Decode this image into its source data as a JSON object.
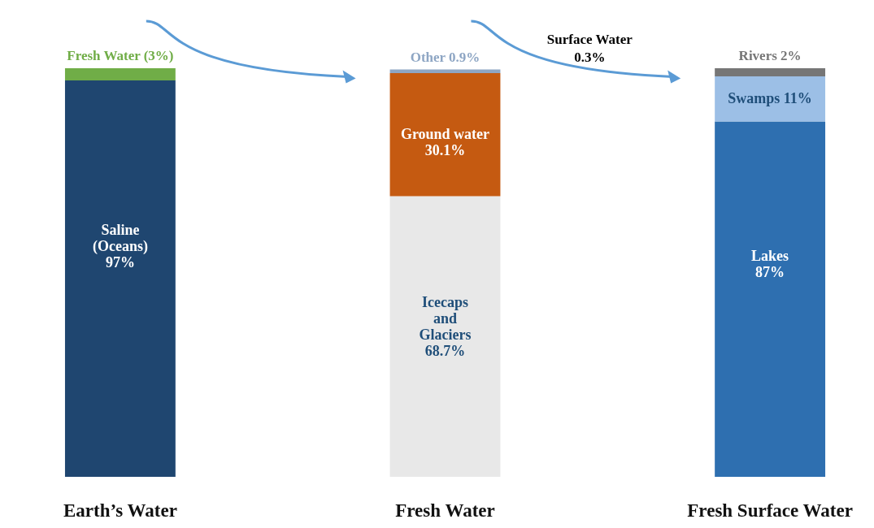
{
  "chart_data": {
    "type": "bar",
    "stacked": true,
    "categories": [
      "Earth’s Water",
      "Fresh Water",
      "Fresh Surface Water"
    ],
    "series": [
      {
        "name": "Saline (Oceans)",
        "color": "#1f4670",
        "values": [
          97,
          null,
          null
        ],
        "value_labels": [
          "97%",
          null,
          null
        ]
      },
      {
        "name": "Fresh Water",
        "color": "#70ad47",
        "values": [
          3,
          null,
          null
        ],
        "value_labels": [
          "(3%)",
          null,
          null
        ]
      },
      {
        "name": "Icecaps and Glaciers",
        "color": "#e8e8e8",
        "values": [
          null,
          68.7,
          null
        ],
        "value_labels": [
          null,
          "68.7%",
          null
        ]
      },
      {
        "name": "Ground water",
        "color": "#c55a11",
        "values": [
          null,
          30.1,
          null
        ],
        "value_labels": [
          null,
          "30.1%",
          null
        ]
      },
      {
        "name": "Other",
        "color": "#8ea6c4",
        "values": [
          null,
          0.9,
          null
        ],
        "value_labels": [
          null,
          "0.9%",
          null
        ]
      },
      {
        "name": "Lakes",
        "color": "#2e6fb0",
        "values": [
          null,
          null,
          87
        ],
        "value_labels": [
          null,
          null,
          "87%"
        ]
      },
      {
        "name": "Swamps",
        "color": "#9cbfe6",
        "values": [
          null,
          null,
          11
        ],
        "value_labels": [
          null,
          null,
          "11%"
        ]
      },
      {
        "name": "Rivers",
        "color": "#767676",
        "values": [
          null,
          null,
          2
        ],
        "value_labels": [
          null,
          null,
          "2%"
        ]
      }
    ],
    "annotations": [
      "Surface Water 0.3%"
    ],
    "grid": false,
    "legend": false
  }
}
